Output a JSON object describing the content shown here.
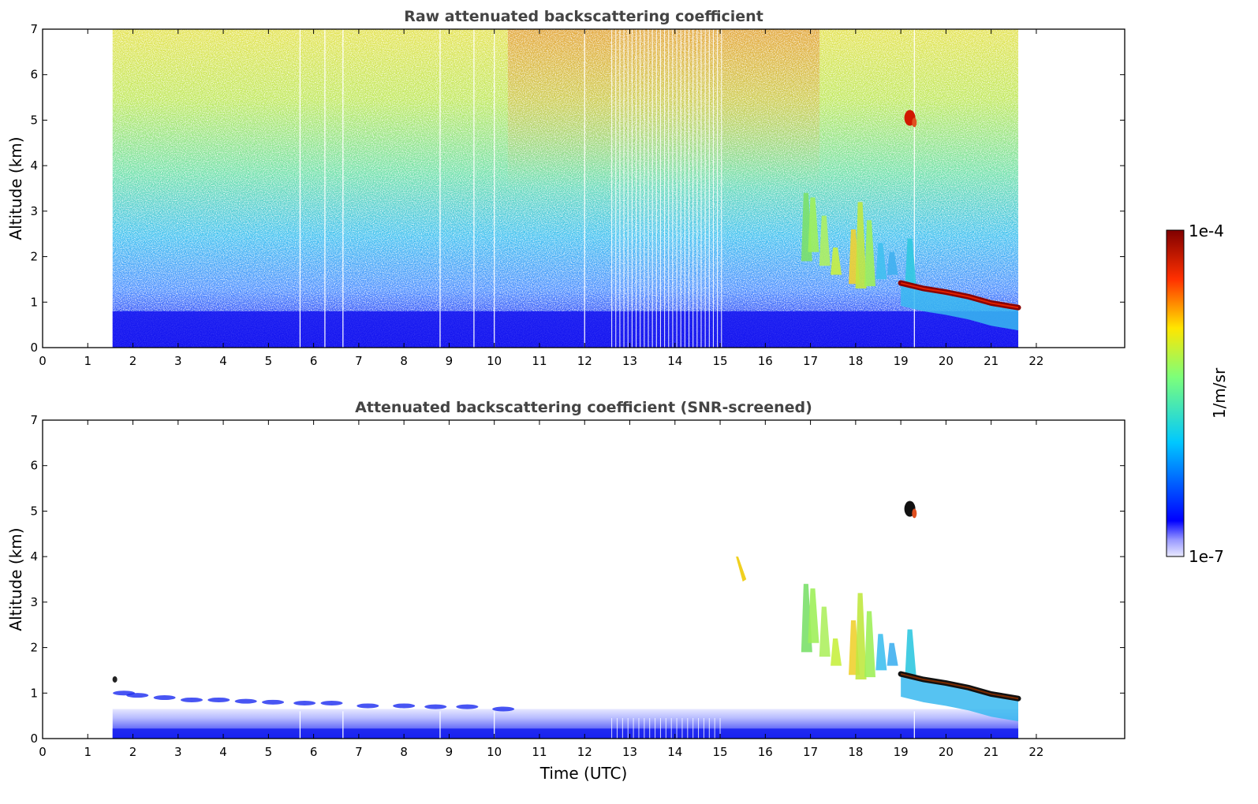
{
  "chart_data": [
    {
      "type": "heatmap",
      "title": "Raw attenuated backscattering coefficient",
      "xlabel": "",
      "ylabel": "Altitude (km)",
      "xlim": [
        0,
        24
      ],
      "ylim": [
        0,
        7
      ],
      "x_ticks": [
        0,
        1,
        2,
        3,
        4,
        5,
        6,
        7,
        8,
        9,
        10,
        11,
        12,
        13,
        14,
        15,
        16,
        17,
        18,
        19,
        20,
        21,
        22
      ],
      "y_ticks": [
        0,
        1,
        2,
        3,
        4,
        5,
        6,
        7
      ],
      "data_time_range_utc": [
        1.55,
        21.6
      ],
      "variable": "raw attenuated backscatter (noisy, fills whole profile)",
      "features": [
        {
          "kind": "boundary_layer",
          "time": [
            1.55,
            21.6
          ],
          "altitude_km": [
            0,
            0.8
          ],
          "level": "low"
        },
        {
          "kind": "cloud_layer",
          "time": [
            19.0,
            21.6
          ],
          "altitude_km_start": 1.4,
          "altitude_km_end": 0.85,
          "level": "max"
        },
        {
          "kind": "precipitation_streaks",
          "time": [
            16.8,
            19.3
          ],
          "altitude_km": [
            1.3,
            3.5
          ],
          "level": "mid"
        },
        {
          "kind": "small_cloud",
          "time": [
            19.1,
            19.3
          ],
          "altitude_km": [
            4.9,
            5.2
          ],
          "level": "max"
        }
      ]
    },
    {
      "type": "heatmap",
      "title": "Attenuated backscattering coefficient (SNR-screened)",
      "xlabel": "Time (UTC)",
      "ylabel": "Altitude (km)",
      "xlim": [
        0,
        24
      ],
      "ylim": [
        0,
        7
      ],
      "x_ticks": [
        0,
        1,
        2,
        3,
        4,
        5,
        6,
        7,
        8,
        9,
        10,
        11,
        12,
        13,
        14,
        15,
        16,
        17,
        18,
        19,
        20,
        21,
        22
      ],
      "y_ticks": [
        0,
        1,
        2,
        3,
        4,
        5,
        6,
        7
      ],
      "data_time_range_utc": [
        1.55,
        21.6
      ],
      "variable": "attenuated backscatter after SNR screening",
      "features": [
        {
          "kind": "boundary_layer",
          "time": [
            1.55,
            21.6
          ],
          "altitude_km": [
            0,
            0.6
          ],
          "level": "low"
        },
        {
          "kind": "cloud_layer",
          "time": [
            19.0,
            21.6
          ],
          "altitude_km_start": 1.4,
          "altitude_km_end": 0.85,
          "level": "max"
        },
        {
          "kind": "precipitation_streaks",
          "time": [
            16.8,
            19.3
          ],
          "altitude_km": [
            1.3,
            3.5
          ],
          "level": "mid"
        },
        {
          "kind": "small_cloud",
          "time": [
            19.1,
            19.3
          ],
          "altitude_km": [
            4.9,
            5.2
          ],
          "level": "max"
        }
      ]
    }
  ],
  "colorbar": {
    "label": "1/m/sr",
    "min_label": "1e-7",
    "max_label": "1e-4",
    "min": 1e-07,
    "max": 0.0001,
    "scale": "log",
    "colormap": "jet"
  }
}
